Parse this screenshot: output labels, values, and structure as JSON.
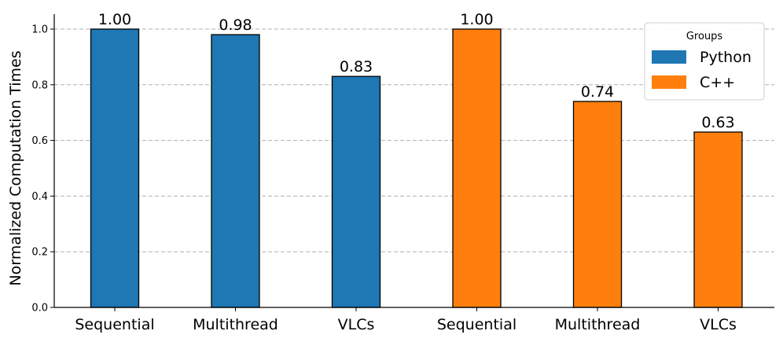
{
  "chart_data": {
    "type": "bar",
    "categories": [
      "Sequential",
      "Multithread",
      "VLCs",
      "Sequential",
      "Multithread",
      "VLCs"
    ],
    "series": [
      {
        "name": "Python",
        "color": "#1f77b4",
        "positions": [
          0,
          1,
          2
        ],
        "values": [
          1.0,
          0.98,
          0.83
        ],
        "value_labels": [
          "1.00",
          "0.98",
          "0.83"
        ]
      },
      {
        "name": "C++",
        "color": "#ff7f0e",
        "positions": [
          3,
          4,
          5
        ],
        "values": [
          1.0,
          0.74,
          0.63
        ],
        "value_labels": [
          "1.00",
          "0.74",
          "0.63"
        ]
      }
    ],
    "ylabel": "Normalized Computation Times",
    "xlabel": "",
    "ylim": [
      0,
      1.05
    ],
    "yticks": [
      0.0,
      0.2,
      0.4,
      0.6,
      0.8,
      1.0
    ],
    "ytick_labels": [
      "0.0",
      "0.2",
      "0.4",
      "0.6",
      "0.8",
      "1.0"
    ],
    "grid": "horizontal dashed",
    "legend": {
      "title": "Groups",
      "placement": "top-right"
    }
  }
}
